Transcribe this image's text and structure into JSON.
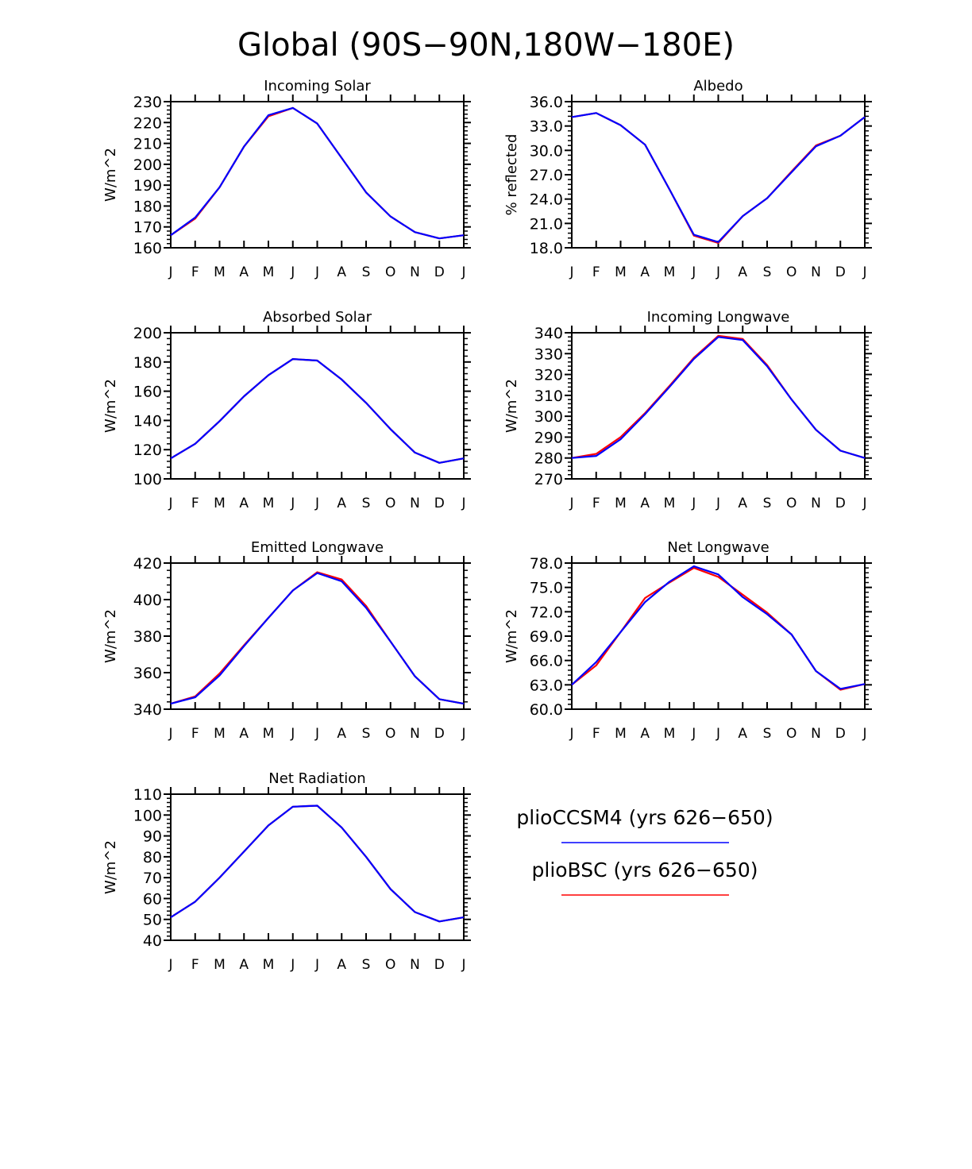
{
  "title": "Global (90S−90N,180W−180E)",
  "colors": {
    "series1": "#0000ff",
    "series2": "#ff0000",
    "axis": "#000000"
  },
  "legend": [
    {
      "label": "plioCCSM4 (yrs 626−650)",
      "color": "#0000ff"
    },
    {
      "label": "plioBSC (yrs 626−650)",
      "color": "#ff0000"
    }
  ],
  "chart_data": [
    {
      "type": "line",
      "title": "Incoming Solar",
      "ylabel": "W/m^2",
      "categories": [
        "J",
        "F",
        "M",
        "A",
        "M",
        "J",
        "J",
        "A",
        "S",
        "O",
        "N",
        "D",
        "J"
      ],
      "ylim": [
        160,
        230
      ],
      "yticks": [
        "160",
        "170",
        "180",
        "190",
        "200",
        "210",
        "220",
        "230"
      ],
      "series": [
        {
          "name": "plioCCSM4 (yrs 626−650)",
          "color": "#0000ff",
          "values": [
            166,
            174.5,
            189,
            208.5,
            223.5,
            227,
            219.5,
            203,
            186.5,
            175,
            167.5,
            164.5,
            166
          ]
        },
        {
          "name": "plioBSC (yrs 626−650)",
          "color": "#ff0000",
          "values": [
            166,
            174,
            189,
            208.5,
            223,
            227,
            219.5,
            203,
            186.5,
            175,
            167.5,
            164.5,
            166
          ]
        }
      ]
    },
    {
      "type": "line",
      "title": "Albedo",
      "ylabel": "% reflected",
      "categories": [
        "J",
        "F",
        "M",
        "A",
        "M",
        "J",
        "J",
        "A",
        "S",
        "O",
        "N",
        "D",
        "J"
      ],
      "ylim": [
        18,
        36
      ],
      "yticks": [
        "18.0",
        "21.0",
        "24.0",
        "27.0",
        "30.0",
        "33.0",
        "36.0"
      ],
      "series": [
        {
          "name": "plioCCSM4 (yrs 626−650)",
          "color": "#0000ff",
          "values": [
            34.1,
            34.6,
            33.1,
            30.7,
            25.2,
            19.6,
            18.7,
            21.9,
            24.1,
            27.3,
            30.5,
            31.8,
            34.1
          ]
        },
        {
          "name": "plioBSC (yrs 626−650)",
          "color": "#ff0000",
          "values": [
            34.1,
            34.6,
            33.1,
            30.7,
            25.2,
            19.5,
            18.6,
            21.9,
            24.1,
            27.4,
            30.6,
            31.8,
            34.1
          ]
        }
      ]
    },
    {
      "type": "line",
      "title": "Absorbed Solar",
      "ylabel": "W/m^2",
      "categories": [
        "J",
        "F",
        "M",
        "A",
        "M",
        "J",
        "J",
        "A",
        "S",
        "O",
        "N",
        "D",
        "J"
      ],
      "ylim": [
        100,
        200
      ],
      "yticks": [
        "100",
        "120",
        "140",
        "160",
        "180",
        "200"
      ],
      "series": [
        {
          "name": "plioCCSM4 (yrs 626−650)",
          "color": "#0000ff",
          "values": [
            114,
            124,
            139.5,
            156.5,
            171,
            182,
            181,
            168,
            152,
            134,
            118,
            111,
            114
          ]
        },
        {
          "name": "plioBSC (yrs 626−650)",
          "color": "#ff0000",
          "values": [
            114,
            124,
            139.5,
            156.5,
            171,
            182,
            181,
            168,
            152,
            134,
            118,
            111,
            114
          ]
        }
      ]
    },
    {
      "type": "line",
      "title": "Incoming Longwave",
      "ylabel": "W/m^2",
      "categories": [
        "J",
        "F",
        "M",
        "A",
        "M",
        "J",
        "J",
        "A",
        "S",
        "O",
        "N",
        "D",
        "J"
      ],
      "ylim": [
        270,
        340
      ],
      "yticks": [
        "270",
        "280",
        "290",
        "300",
        "310",
        "320",
        "330",
        "340"
      ],
      "series": [
        {
          "name": "plioCCSM4 (yrs 626−650)",
          "color": "#0000ff",
          "values": [
            280,
            281,
            289,
            301,
            314,
            327.5,
            338,
            336.5,
            324,
            308,
            293.5,
            283.5,
            280
          ]
        },
        {
          "name": "plioBSC (yrs 626−650)",
          "color": "#ff0000",
          "values": [
            280,
            282,
            290,
            301.5,
            314.5,
            328,
            338.5,
            337,
            324.5,
            308,
            293.5,
            283.5,
            280
          ]
        }
      ]
    },
    {
      "type": "line",
      "title": "Emitted Longwave",
      "ylabel": "W/m^2",
      "categories": [
        "J",
        "F",
        "M",
        "A",
        "M",
        "J",
        "J",
        "A",
        "S",
        "O",
        "N",
        "D",
        "J"
      ],
      "ylim": [
        340,
        420
      ],
      "yticks": [
        "340",
        "360",
        "380",
        "400",
        "420"
      ],
      "series": [
        {
          "name": "plioCCSM4 (yrs 626−650)",
          "color": "#0000ff",
          "values": [
            343,
            346.5,
            358.5,
            374.5,
            390,
            405,
            414.5,
            410,
            395.5,
            377,
            358,
            345.5,
            343
          ]
        },
        {
          "name": "plioBSC (yrs 626−650)",
          "color": "#ff0000",
          "values": [
            343,
            347,
            359.5,
            375,
            390,
            405,
            415,
            411,
            396.5,
            377,
            358,
            345.5,
            343
          ]
        }
      ]
    },
    {
      "type": "line",
      "title": "Net Longwave",
      "ylabel": "W/m^2",
      "categories": [
        "J",
        "F",
        "M",
        "A",
        "M",
        "J",
        "J",
        "A",
        "S",
        "O",
        "N",
        "D",
        "J"
      ],
      "ylim": [
        60,
        78
      ],
      "yticks": [
        "60.0",
        "63.0",
        "66.0",
        "69.0",
        "72.0",
        "75.0",
        "78.0"
      ],
      "series": [
        {
          "name": "plioCCSM4 (yrs 626−650)",
          "color": "#0000ff",
          "values": [
            63.0,
            65.8,
            69.5,
            73.2,
            75.7,
            77.6,
            76.6,
            73.8,
            71.7,
            69.2,
            64.7,
            62.5,
            63.1
          ]
        },
        {
          "name": "plioBSC (yrs 626−650)",
          "color": "#ff0000",
          "values": [
            63.0,
            65.4,
            69.5,
            73.7,
            75.6,
            77.4,
            76.3,
            74.1,
            71.9,
            69.2,
            64.7,
            62.4,
            63.1
          ]
        }
      ]
    },
    {
      "type": "line",
      "title": "Net Radiation",
      "ylabel": "W/m^2",
      "categories": [
        "J",
        "F",
        "M",
        "A",
        "M",
        "J",
        "J",
        "A",
        "S",
        "O",
        "N",
        "D",
        "J"
      ],
      "ylim": [
        40,
        110
      ],
      "yticks": [
        "40",
        "50",
        "60",
        "70",
        "80",
        "90",
        "100",
        "110"
      ],
      "series": [
        {
          "name": "plioCCSM4 (yrs 626−650)",
          "color": "#0000ff",
          "values": [
            51,
            58.5,
            70,
            82.5,
            95,
            104,
            104.5,
            94,
            80,
            64.5,
            53.5,
            49,
            51
          ]
        },
        {
          "name": "plioBSC (yrs 626−650)",
          "color": "#ff0000",
          "values": [
            51,
            58.5,
            70,
            82.5,
            95,
            104,
            104.5,
            94,
            80,
            64.5,
            53.5,
            49,
            51
          ]
        }
      ]
    }
  ]
}
